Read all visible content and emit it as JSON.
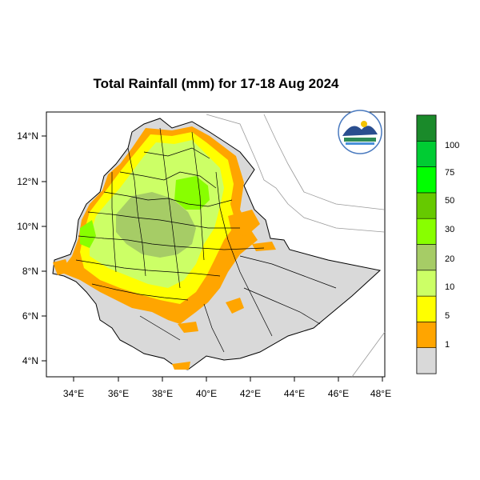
{
  "map": {
    "title": "Total Rainfall (mm) for 17-18 Aug 2024",
    "lon_ticks": [
      "34°E",
      "36°E",
      "38°E",
      "40°E",
      "42°E",
      "44°E",
      "46°E",
      "48°E"
    ],
    "lat_ticks": [
      "14°N",
      "12°N",
      "10°N",
      "8°N",
      "6°N",
      "4°N"
    ],
    "lon_range": [
      32.9,
      48.2
    ],
    "lat_range": [
      3.2,
      15.0
    ]
  },
  "colorbar": {
    "labels": [
      "1",
      "5",
      "10",
      "20",
      "30",
      "50",
      "75",
      "100"
    ],
    "colors": [
      "#d9d9d9",
      "#ffa500",
      "#ffff00",
      "#ccff66",
      "#a6cc66",
      "#88ff00",
      "#66c900",
      "#00ff00",
      "#00cc33",
      "#1a8a2a"
    ]
  },
  "colors": {
    "no_rain": "#d9d9d9",
    "border": "#000000",
    "neighbor": "#888888"
  }
}
